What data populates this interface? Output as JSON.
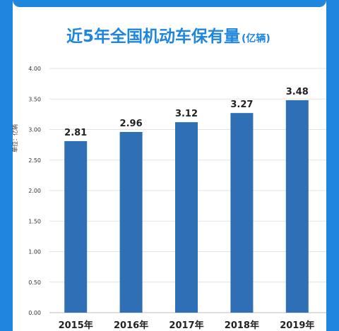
{
  "chart_data": {
    "type": "bar",
    "title": "近5年全国机动车保有量",
    "title_unit": "(亿辆)",
    "ylabel": "单位：亿辆",
    "xlabel": "",
    "categories": [
      "2015年",
      "2016年",
      "2017年",
      "2018年",
      "2019年"
    ],
    "values": [
      2.81,
      2.96,
      3.12,
      3.27,
      3.48
    ],
    "value_labels": [
      "2.81",
      "2.96",
      "3.12",
      "3.27",
      "3.48"
    ],
    "ylim": [
      0,
      4
    ],
    "yticks": [
      "0.00",
      "0.50",
      "1.00",
      "1.50",
      "2.00",
      "2.50",
      "3.00",
      "3.50",
      "4.00"
    ],
    "grid": true,
    "legend": "none",
    "bar_color": "#2f6fb5",
    "accent_color": "#1f86e0"
  }
}
